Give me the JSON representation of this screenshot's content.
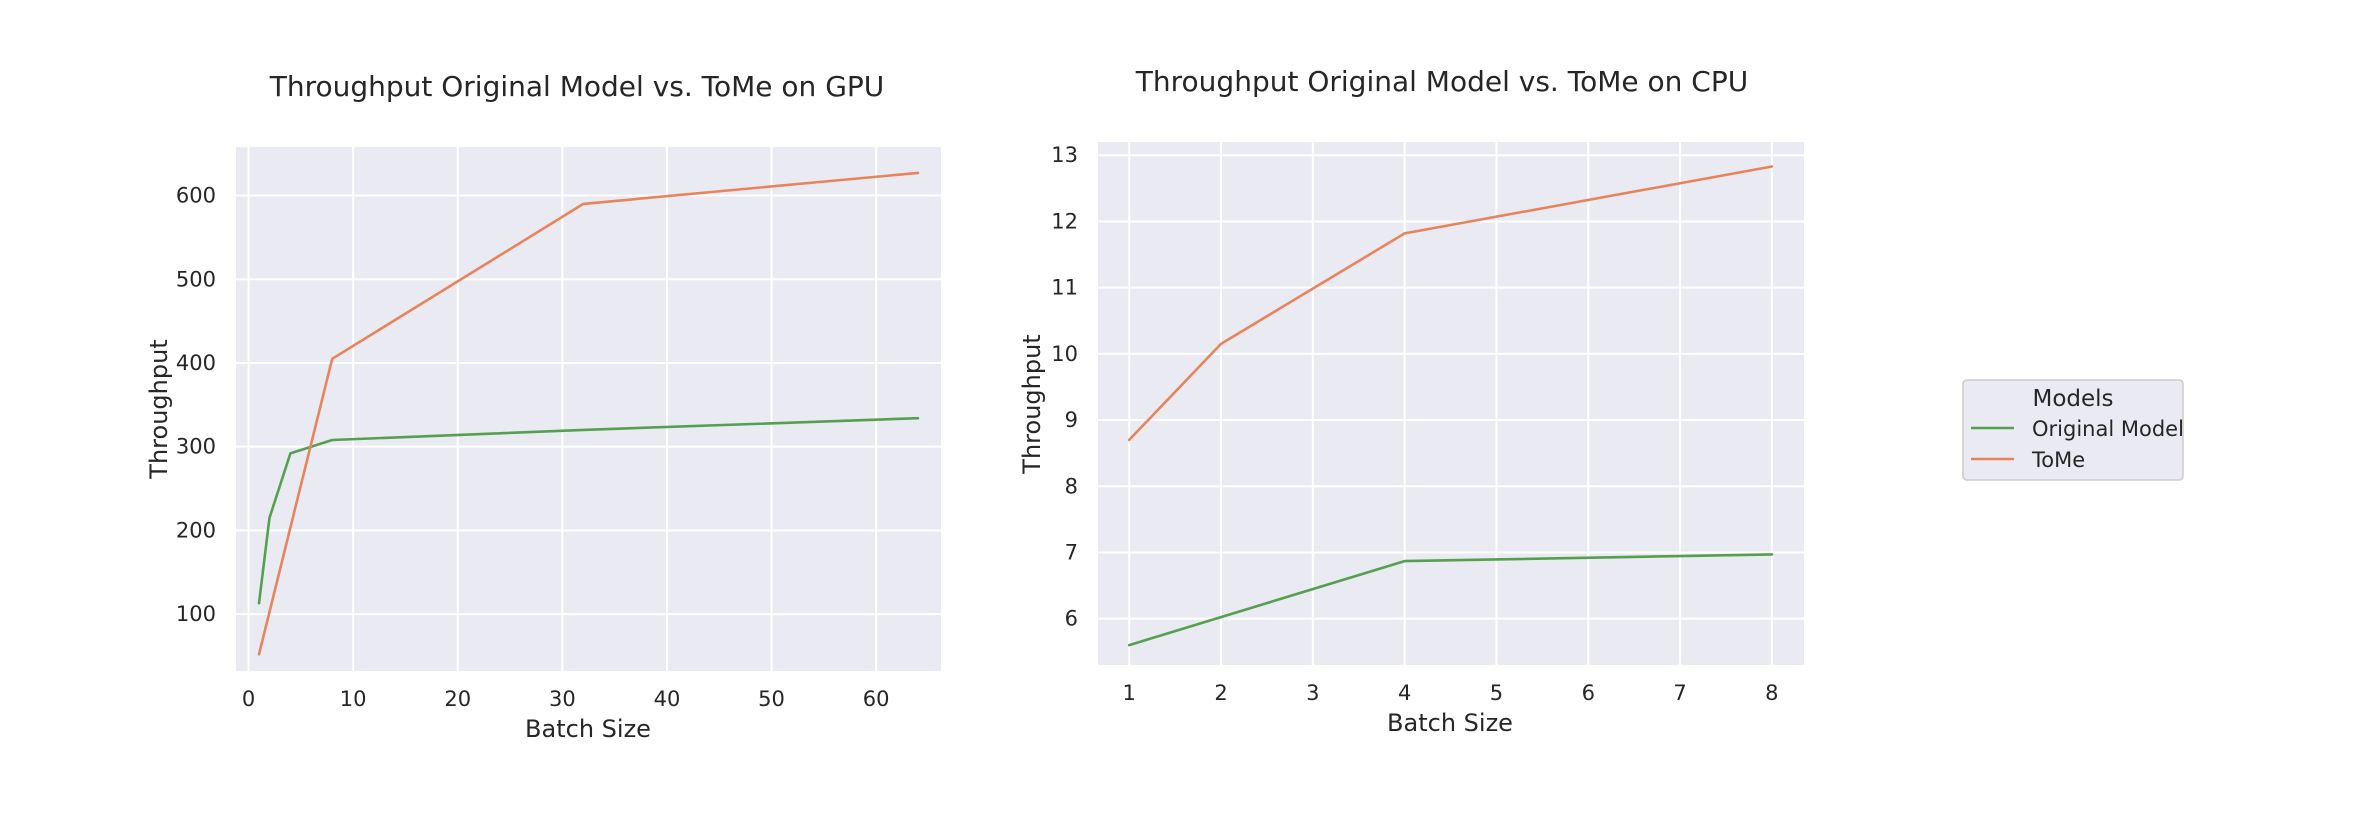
{
  "chart_data": [
    {
      "type": "line",
      "title": "Throughput Original Model vs. ToMe on GPU",
      "xlabel": "Batch Size",
      "ylabel": "Throughput",
      "xlim": [
        -1.2,
        66.2
      ],
      "ylim": [
        32,
        658
      ],
      "xticks": [
        0,
        10,
        20,
        30,
        40,
        50,
        60
      ],
      "yticks": [
        100,
        200,
        300,
        400,
        500,
        600
      ],
      "grid": true,
      "series": [
        {
          "name": "Original Model",
          "color": "#55a050",
          "x": [
            1,
            2,
            4,
            8,
            32,
            64
          ],
          "y": [
            113,
            215,
            292,
            308,
            320,
            334
          ]
        },
        {
          "name": "ToMe",
          "color": "#e8845c",
          "x": [
            1,
            8,
            32,
            64
          ],
          "y": [
            52,
            405,
            590,
            627
          ]
        }
      ]
    },
    {
      "type": "line",
      "title": "Throughput Original Model vs. ToMe on CPU",
      "xlabel": "Batch Size",
      "ylabel": "Throughput",
      "xlim": [
        0.66,
        8.35
      ],
      "ylim": [
        5.3,
        13.2
      ],
      "xticks": [
        1,
        2,
        3,
        4,
        5,
        6,
        7,
        8
      ],
      "yticks": [
        6,
        7,
        8,
        9,
        10,
        11,
        12,
        13
      ],
      "grid": true,
      "series": [
        {
          "name": "Original Model",
          "color": "#55a050",
          "x": [
            1,
            4,
            8
          ],
          "y": [
            5.6,
            6.87,
            6.97
          ]
        },
        {
          "name": "ToMe",
          "color": "#e8845c",
          "x": [
            1,
            2,
            4,
            8
          ],
          "y": [
            8.7,
            10.15,
            11.82,
            12.83
          ]
        }
      ]
    }
  ],
  "legend": {
    "title": "Models",
    "placement": "right",
    "items": [
      {
        "label": "Original Model",
        "color": "#55a050"
      },
      {
        "label": "ToMe",
        "color": "#e8845c"
      }
    ]
  }
}
